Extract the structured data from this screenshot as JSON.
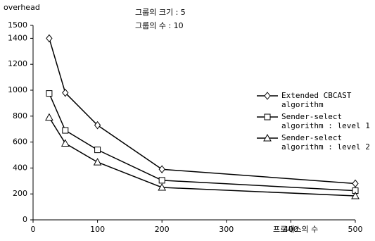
{
  "chart_data": {
    "type": "line",
    "annotations": [
      "그룹의 크기 : 5",
      "그룹의 수 : 10"
    ],
    "y_label": "overhead",
    "x_label": "프로세스의 수",
    "x": [
      25,
      50,
      100,
      200,
      500
    ],
    "series": [
      {
        "name": "Extended CBCAST algorithm",
        "color": "#000000",
        "marker": "diamond",
        "values": [
          1400,
          980,
          730,
          390,
          280
        ]
      },
      {
        "name": "Sender-select algorithm : level 1",
        "color": "#000000",
        "marker": "square",
        "values": [
          975,
          690,
          540,
          305,
          225
        ]
      },
      {
        "name": "Sender-select algorithm : level 2",
        "color": "#000000",
        "marker": "triangle",
        "values": [
          790,
          590,
          445,
          250,
          185
        ]
      }
    ],
    "xlim": [
      0,
      500
    ],
    "xticks": [
      0,
      100,
      200,
      300,
      400,
      500
    ],
    "ylim": [
      0,
      1500
    ],
    "yticks": [
      0,
      200,
      400,
      600,
      800,
      1000,
      1200,
      1400,
      1500
    ],
    "grid": false,
    "legend": "right"
  }
}
